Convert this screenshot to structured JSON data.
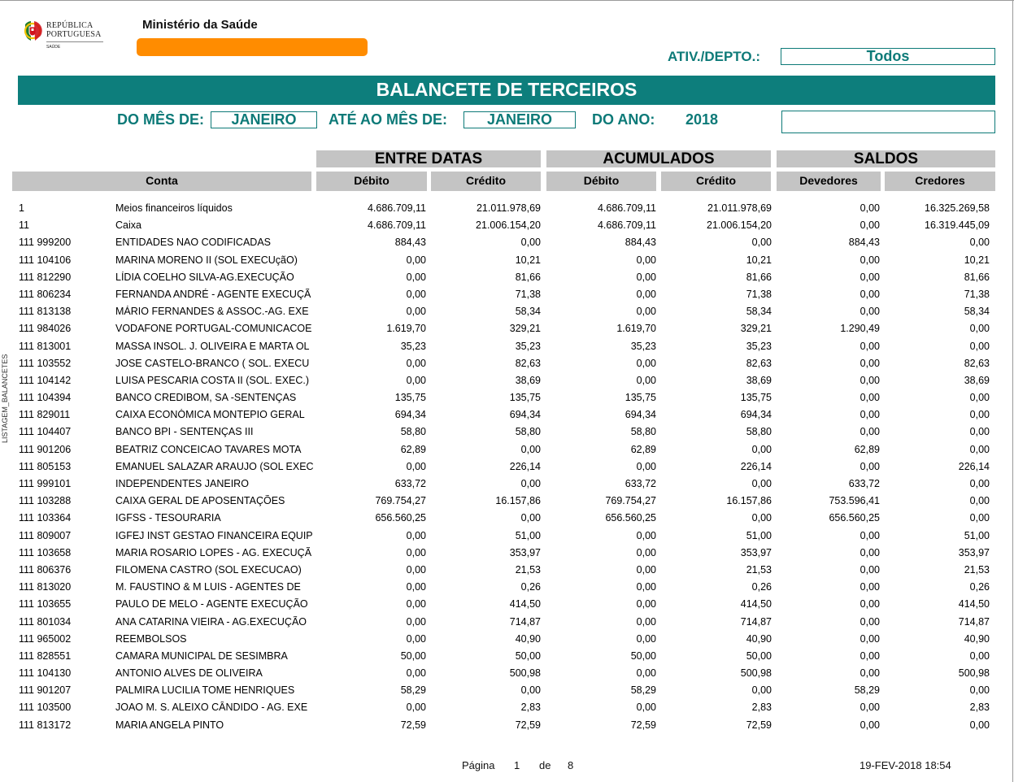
{
  "logo": {
    "line1": "REPÚBLICA",
    "line2": "PORTUGUESA",
    "line3": "SAÚDE",
    "icon": "portugal-emblem-icon",
    "colors": {
      "green": "#1f7a2f",
      "red": "#d0121b",
      "yellow": "#f2c200"
    }
  },
  "header": {
    "ministry": "Ministério da Saúde",
    "ativ_label": "ATIV./DEPTO.:",
    "ativ_value": "Todos",
    "title": "BALANCETE DE TERCEIROS"
  },
  "period": {
    "from_label": "DO MÊS DE:",
    "from_value": "JANEIRO",
    "to_label": "ATÉ AO MÊS DE:",
    "to_value": "JANEIRO",
    "year_label": "DO ANO:",
    "year_value": "2018"
  },
  "columns": {
    "groups": [
      "ENTRE DATAS",
      "ACUMULADOS",
      "SALDOS"
    ],
    "conta": "Conta",
    "debito": "Débito",
    "credito": "Crédito",
    "devedores": "Devedores",
    "credores": "Credores"
  },
  "rows": [
    {
      "code": "1",
      "name": "Meios financeiros líquidos",
      "v": [
        "4.686.709,11",
        "21.011.978,69",
        "4.686.709,11",
        "21.011.978,69",
        "0,00",
        "16.325.269,58"
      ]
    },
    {
      "code": "11",
      "name": "Caixa",
      "v": [
        "4.686.709,11",
        "21.006.154,20",
        "4.686.709,11",
        "21.006.154,20",
        "0,00",
        "16.319.445,09"
      ]
    },
    {
      "code": "111 999200",
      "name": "ENTIDADES NAO CODIFICADAS",
      "v": [
        "884,43",
        "0,00",
        "884,43",
        "0,00",
        "884,43",
        "0,00"
      ]
    },
    {
      "code": "111 104106",
      "name": "MARINA MORENO II (SOL EXECUçãO)",
      "v": [
        "0,00",
        "10,21",
        "0,00",
        "10,21",
        "0,00",
        "10,21"
      ]
    },
    {
      "code": "111 812290",
      "name": "LÍDIA COELHO SILVA-AG.EXECUÇÃO",
      "v": [
        "0,00",
        "81,66",
        "0,00",
        "81,66",
        "0,00",
        "81,66"
      ]
    },
    {
      "code": "111 806234",
      "name": "FERNANDA ANDRÉ - AGENTE EXECUÇÃ",
      "v": [
        "0,00",
        "71,38",
        "0,00",
        "71,38",
        "0,00",
        "71,38"
      ]
    },
    {
      "code": "111 813138",
      "name": "MÁRIO FERNANDES & ASSOC.-AG. EXE",
      "v": [
        "0,00",
        "58,34",
        "0,00",
        "58,34",
        "0,00",
        "58,34"
      ]
    },
    {
      "code": "111 984026",
      "name": "VODAFONE PORTUGAL-COMUNICACOE",
      "v": [
        "1.619,70",
        "329,21",
        "1.619,70",
        "329,21",
        "1.290,49",
        "0,00"
      ]
    },
    {
      "code": "111 813001",
      "name": "MASSA INSOL. J. OLIVEIRA E MARTA OL",
      "v": [
        "35,23",
        "35,23",
        "35,23",
        "35,23",
        "0,00",
        "0,00"
      ]
    },
    {
      "code": "111 103552",
      "name": "JOSE CASTELO-BRANCO ( SOL. EXECU",
      "v": [
        "0,00",
        "82,63",
        "0,00",
        "82,63",
        "0,00",
        "82,63"
      ]
    },
    {
      "code": "111 104142",
      "name": "LUISA PESCARIA COSTA II (SOL. EXEC.)",
      "v": [
        "0,00",
        "38,69",
        "0,00",
        "38,69",
        "0,00",
        "38,69"
      ]
    },
    {
      "code": "111 104394",
      "name": "BANCO CREDIBOM, SA -SENTENÇAS",
      "v": [
        "135,75",
        "135,75",
        "135,75",
        "135,75",
        "0,00",
        "0,00"
      ]
    },
    {
      "code": "111 829011",
      "name": "CAIXA ECONÓMICA MONTEPIO GERAL",
      "v": [
        "694,34",
        "694,34",
        "694,34",
        "694,34",
        "0,00",
        "0,00"
      ]
    },
    {
      "code": "111 104407",
      "name": "BANCO BPI - SENTENÇAS III",
      "v": [
        "58,80",
        "58,80",
        "58,80",
        "58,80",
        "0,00",
        "0,00"
      ]
    },
    {
      "code": "111 901206",
      "name": "BEATRIZ CONCEICAO TAVARES MOTA",
      "v": [
        "62,89",
        "0,00",
        "62,89",
        "0,00",
        "62,89",
        "0,00"
      ]
    },
    {
      "code": "111 805153",
      "name": "EMANUEL SALAZAR ARAUJO (SOL EXEC",
      "v": [
        "0,00",
        "226,14",
        "0,00",
        "226,14",
        "0,00",
        "226,14"
      ]
    },
    {
      "code": "111 999101",
      "name": "INDEPENDENTES JANEIRO",
      "v": [
        "633,72",
        "0,00",
        "633,72",
        "0,00",
        "633,72",
        "0,00"
      ]
    },
    {
      "code": "111 103288",
      "name": "CAIXA GERAL DE APOSENTAÇÕES",
      "v": [
        "769.754,27",
        "16.157,86",
        "769.754,27",
        "16.157,86",
        "753.596,41",
        "0,00"
      ]
    },
    {
      "code": "111 103364",
      "name": "IGFSS - TESOURARIA",
      "v": [
        "656.560,25",
        "0,00",
        "656.560,25",
        "0,00",
        "656.560,25",
        "0,00"
      ]
    },
    {
      "code": "111 809007",
      "name": "IGFEJ INST GESTAO FINANCEIRA EQUIP",
      "v": [
        "0,00",
        "51,00",
        "0,00",
        "51,00",
        "0,00",
        "51,00"
      ]
    },
    {
      "code": "111 103658",
      "name": "MARIA ROSARIO LOPES - AG. EXECUÇÃ",
      "v": [
        "0,00",
        "353,97",
        "0,00",
        "353,97",
        "0,00",
        "353,97"
      ]
    },
    {
      "code": "111 806376",
      "name": "FILOMENA CASTRO (SOL EXECUCAO)",
      "v": [
        "0,00",
        "21,53",
        "0,00",
        "21,53",
        "0,00",
        "21,53"
      ]
    },
    {
      "code": "111 813020",
      "name": "M. FAUSTINO & M LUIS - AGENTES DE",
      "v": [
        "0,00",
        "0,26",
        "0,00",
        "0,26",
        "0,00",
        "0,26"
      ]
    },
    {
      "code": "111 103655",
      "name": "PAULO DE MELO - AGENTE EXECUÇÃO",
      "v": [
        "0,00",
        "414,50",
        "0,00",
        "414,50",
        "0,00",
        "414,50"
      ]
    },
    {
      "code": "111 801034",
      "name": "ANA CATARINA VIEIRA - AG.EXECUÇÃO",
      "v": [
        "0,00",
        "714,87",
        "0,00",
        "714,87",
        "0,00",
        "714,87"
      ]
    },
    {
      "code": "111 965002",
      "name": "REEMBOLSOS",
      "v": [
        "0,00",
        "40,90",
        "0,00",
        "40,90",
        "0,00",
        "40,90"
      ]
    },
    {
      "code": "111 828551",
      "name": "CAMARA MUNICIPAL DE SESIMBRA",
      "v": [
        "50,00",
        "50,00",
        "50,00",
        "50,00",
        "0,00",
        "0,00"
      ]
    },
    {
      "code": "111 104130",
      "name": "ANTONIO ALVES DE OLIVEIRA",
      "v": [
        "0,00",
        "500,98",
        "0,00",
        "500,98",
        "0,00",
        "500,98"
      ]
    },
    {
      "code": "111 901207",
      "name": "PALMIRA LUCILIA TOME HENRIQUES",
      "v": [
        "58,29",
        "0,00",
        "58,29",
        "0,00",
        "58,29",
        "0,00"
      ]
    },
    {
      "code": "111 103500",
      "name": "JOAO M. S. ALEIXO CÂNDIDO - AG. EXE",
      "v": [
        "0,00",
        "2,83",
        "0,00",
        "2,83",
        "0,00",
        "2,83"
      ]
    },
    {
      "code": "111 813172",
      "name": "MARIA ANGELA PINTO",
      "v": [
        "72,59",
        "72,59",
        "72,59",
        "72,59",
        "0,00",
        "0,00"
      ]
    }
  ],
  "side_label": "LISTAGEM_BALANCETES",
  "footer": {
    "page_label": "Página",
    "page_num": "1",
    "of_label": "de",
    "page_total": "8",
    "datetime": "19-FEV-2018 18:54"
  }
}
